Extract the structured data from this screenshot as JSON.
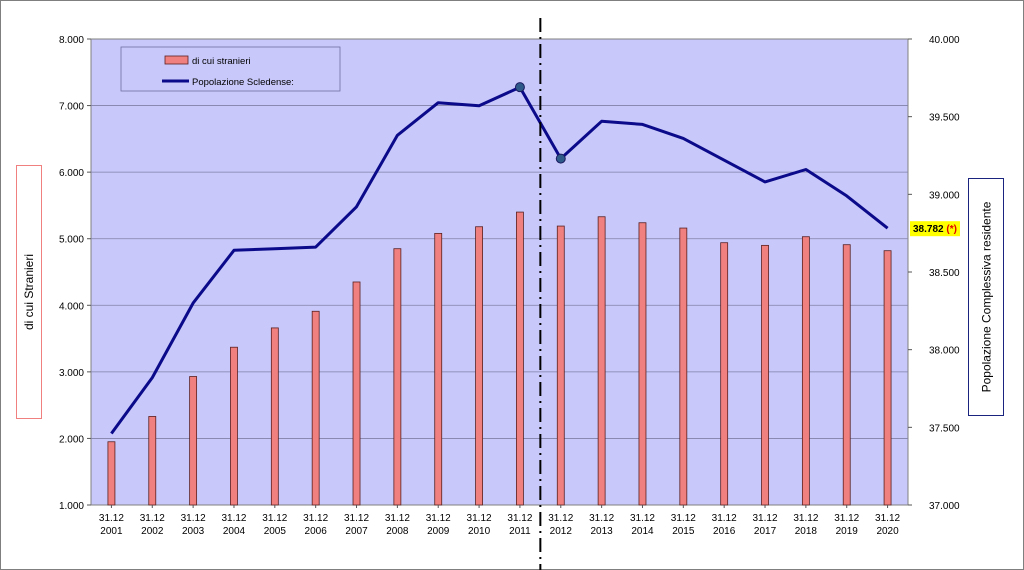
{
  "chart_data": {
    "type": "bar",
    "categories": [
      [
        "31.12",
        "2001"
      ],
      [
        "31.12",
        "2002"
      ],
      [
        "31.12",
        "2003"
      ],
      [
        "31.12",
        "2004"
      ],
      [
        "31.12",
        "2005"
      ],
      [
        "31.12",
        "2006"
      ],
      [
        "31.12",
        "2007"
      ],
      [
        "31.12",
        "2008"
      ],
      [
        "31.12",
        "2009"
      ],
      [
        "31.12",
        "2010"
      ],
      [
        "31.12",
        "2011"
      ],
      [
        "31.12",
        "2012"
      ],
      [
        "31.12",
        "2013"
      ],
      [
        "31.12",
        "2014"
      ],
      [
        "31.12",
        "2015"
      ],
      [
        "31.12",
        "2016"
      ],
      [
        "31.12",
        "2017"
      ],
      [
        "31.12",
        "2018"
      ],
      [
        "31.12",
        "2019"
      ],
      [
        "31.12",
        "2020"
      ]
    ],
    "series": [
      {
        "name": "di cui stranieri",
        "kind": "bar",
        "axis": "left",
        "color": "#f08080",
        "values": [
          1950,
          2330,
          2930,
          3370,
          3660,
          3910,
          4350,
          4850,
          5080,
          5180,
          5400,
          5190,
          5330,
          5240,
          5160,
          4940,
          4900,
          5030,
          4910,
          4820
        ]
      },
      {
        "name": "Popolazione Scledense:",
        "kind": "line",
        "axis": "right",
        "color": "#0a0a8a",
        "values": [
          37460,
          37820,
          38300,
          38640,
          38650,
          38660,
          38920,
          39380,
          39590,
          39570,
          39690,
          39230,
          39470,
          39450,
          39360,
          39220,
          39080,
          39160,
          38990,
          38782
        ],
        "marker_indices": [
          10,
          11
        ]
      }
    ],
    "left_axis": {
      "label": "di cui Stranieri",
      "ylim": [
        1000,
        8000
      ],
      "ticks": [
        "1.000",
        "2.000",
        "3.000",
        "4.000",
        "5.000",
        "6.000",
        "7.000",
        "8.000"
      ]
    },
    "right_axis": {
      "label": "Popolazione Complessiva residente",
      "ylim": [
        37000,
        40000
      ],
      "ticks": [
        "37.000",
        "37.500",
        "38.000",
        "38.500",
        "39.000",
        "39.500",
        "40.000"
      ]
    },
    "last_value_label": {
      "value": "38.782",
      "note": "(*)"
    },
    "divider_between": [
      10,
      11
    ],
    "plot_background": "#c8c8fa",
    "grid": true,
    "legend_position": "top-left"
  }
}
